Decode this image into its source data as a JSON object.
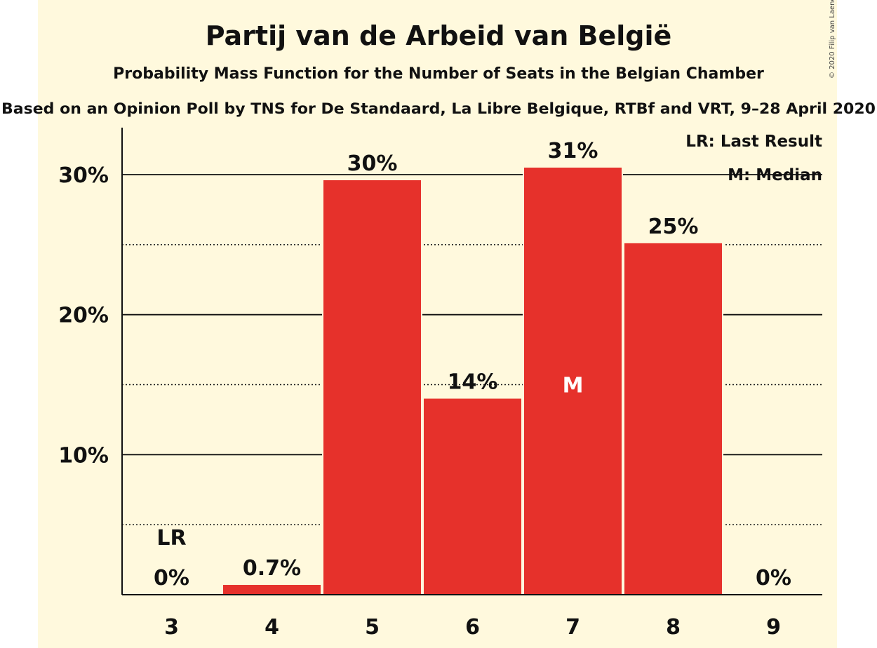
{
  "colors": {
    "background": "#fff9dd",
    "bar": "#e6312b",
    "median_text": "#ffffff"
  },
  "copyright": "© 2020 Filip van Laenen",
  "chart_data": {
    "type": "bar",
    "title": "Partij van de Arbeid van België",
    "subtitle": "Probability Mass Function for the Number of Seats in the Belgian Chamber",
    "source": "Based on an Opinion Poll by TNS for De Standaard, La Libre Belgique, RTBf and VRT, 9–28 April 2020",
    "categories": [
      "3",
      "4",
      "5",
      "6",
      "7",
      "8",
      "9"
    ],
    "values": [
      0,
      0.7,
      29.6,
      14.0,
      30.5,
      25.1,
      0
    ],
    "value_labels": [
      "0%",
      "0.7%",
      "30%",
      "14%",
      "31%",
      "25%",
      "0%"
    ],
    "ylim": [
      0,
      33
    ],
    "yticks": [
      10,
      20,
      30
    ],
    "ytick_labels": [
      "10%",
      "20%",
      "30%"
    ],
    "minor_gridlines": [
      5,
      15,
      25
    ],
    "last_result_category": "3",
    "last_result_label": "LR",
    "median_category": "7",
    "median_label": "M",
    "legend": [
      "LR: Last Result",
      "M: Median"
    ],
    "legend_position": "top-right",
    "xlabel": "",
    "ylabel": ""
  }
}
